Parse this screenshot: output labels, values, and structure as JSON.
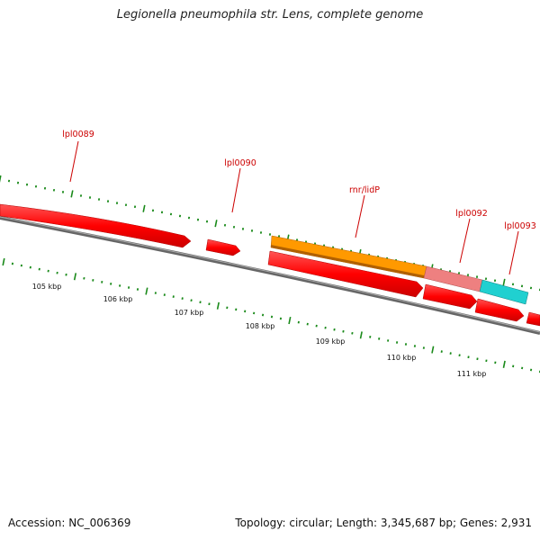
{
  "title": "Legionella pneumophila str. Lens, complete genome",
  "footer": {
    "accession": "Accession: NC_006369",
    "summary": "Topology: circular; Length: 3,345,687 bp; Genes: 2,931"
  },
  "colors": {
    "forward_gene": "#ff0000",
    "gene_label": "#cc0000",
    "tick": "#1a8a1a",
    "backbone": "#777777",
    "rna_orange": "#ff9900",
    "rna_pink": "#ee8080",
    "rna_cyan": "#20d0d0"
  },
  "gene_labels": [
    "lpl0089",
    "lpl0090",
    "rnr/lidP",
    "lpl0092",
    "lpl0093"
  ],
  "kbp_labels": [
    "105 kbp",
    "106 kbp",
    "107 kbp",
    "108 kbp",
    "109 kbp",
    "110 kbp",
    "111 kbp"
  ]
}
